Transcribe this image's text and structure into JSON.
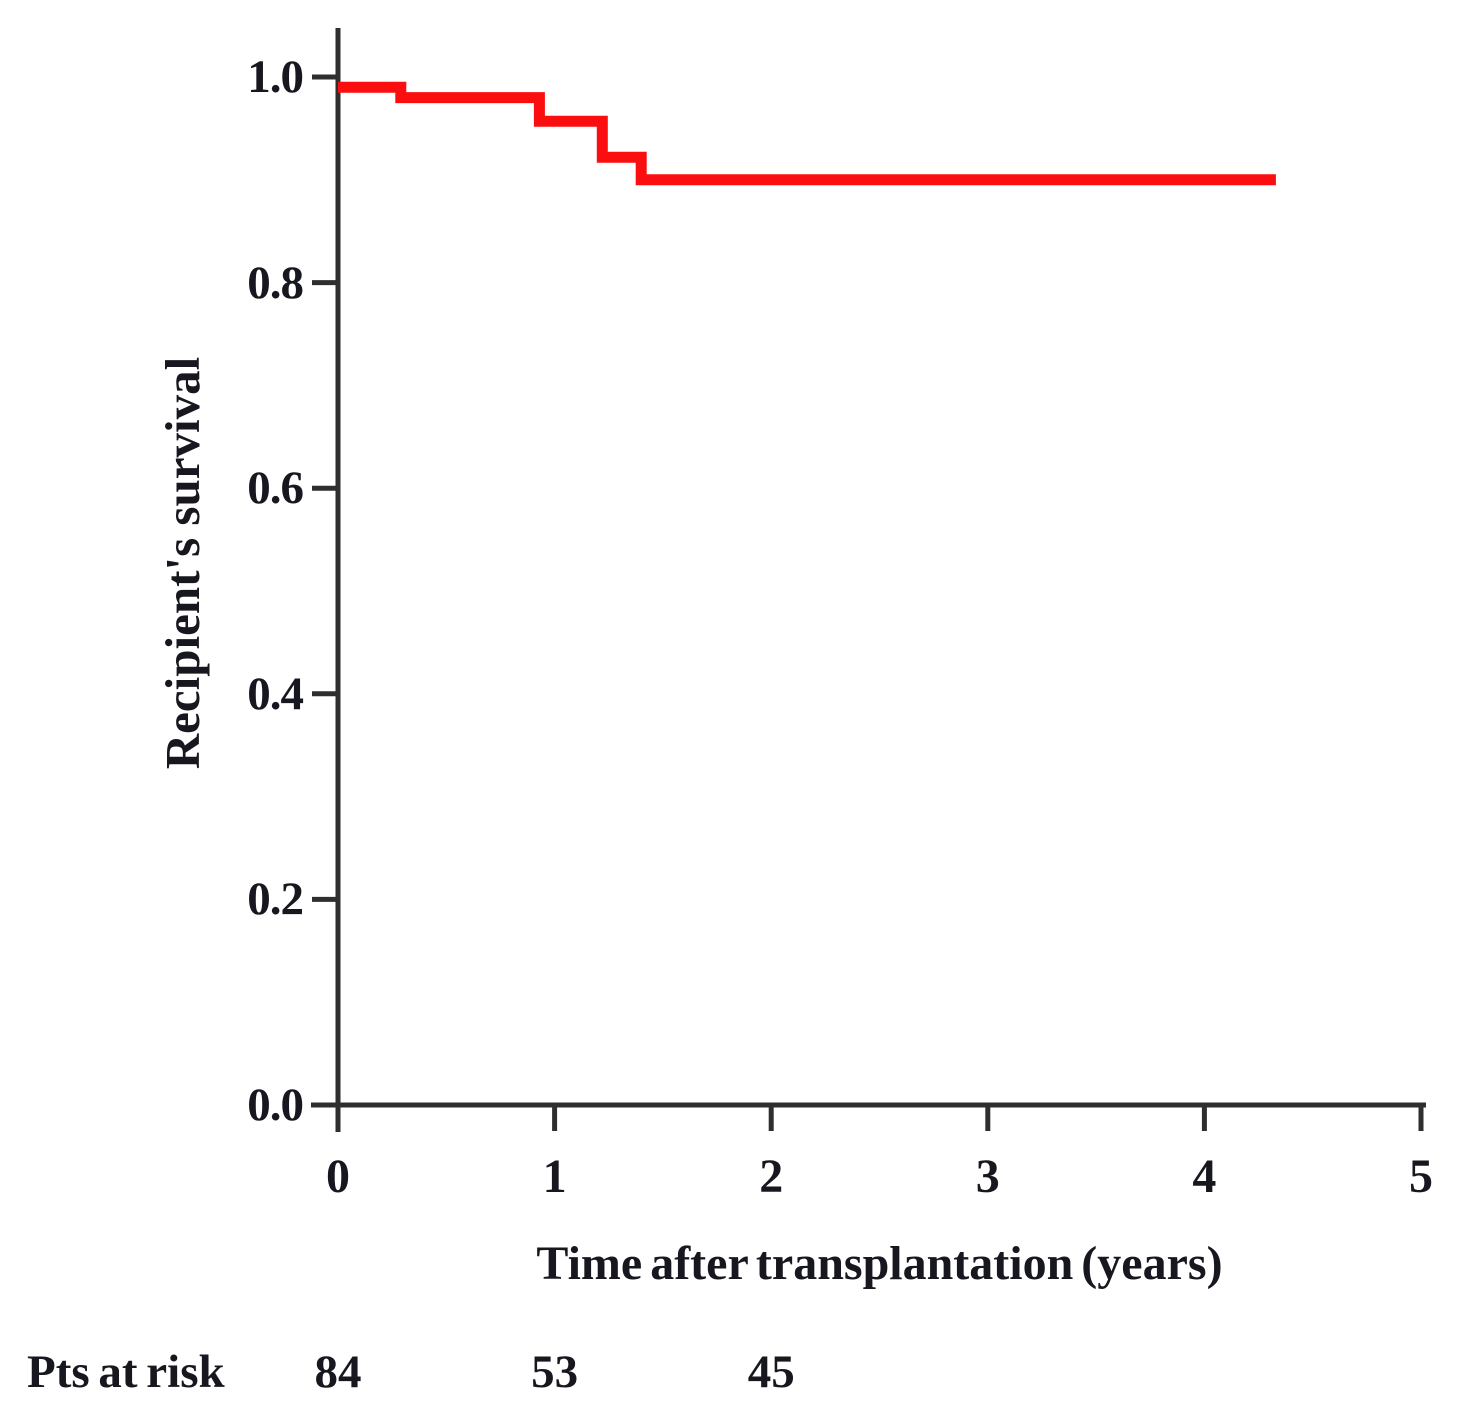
{
  "figure": {
    "background": "#ffffff",
    "axis_color": "#2e2e2e",
    "text_color": "#17171f"
  },
  "chart_data": {
    "type": "line",
    "subtype": "kaplan_meier_step",
    "title": "",
    "xlabel": "Time after transplantation (years)",
    "ylabel": "Recipient's survival",
    "xlim": [
      0,
      5
    ],
    "ylim": [
      0.0,
      1.0
    ],
    "xticks": [
      "0",
      "1",
      "2",
      "3",
      "4",
      "5"
    ],
    "yticks": [
      "0.0",
      "0.2",
      "0.4",
      "0.6",
      "0.8",
      "1.0"
    ],
    "grid": false,
    "legend_position": "none",
    "series": [
      {
        "name": "Recipient's survival",
        "color": "#fb0e10",
        "points": [
          [
            0,
            0.99
          ],
          [
            0.29,
            0.99
          ],
          [
            0.29,
            0.98
          ],
          [
            0.93,
            0.98
          ],
          [
            0.93,
            0.957
          ],
          [
            1.22,
            0.957
          ],
          [
            1.22,
            0.922
          ],
          [
            1.4,
            0.922
          ],
          [
            1.4,
            0.9
          ],
          [
            4.33,
            0.9
          ]
        ]
      }
    ],
    "at_risk": {
      "label": "Pts at risk",
      "times": [
        0,
        1,
        2
      ],
      "counts": [
        "84",
        "53",
        "45"
      ]
    }
  }
}
